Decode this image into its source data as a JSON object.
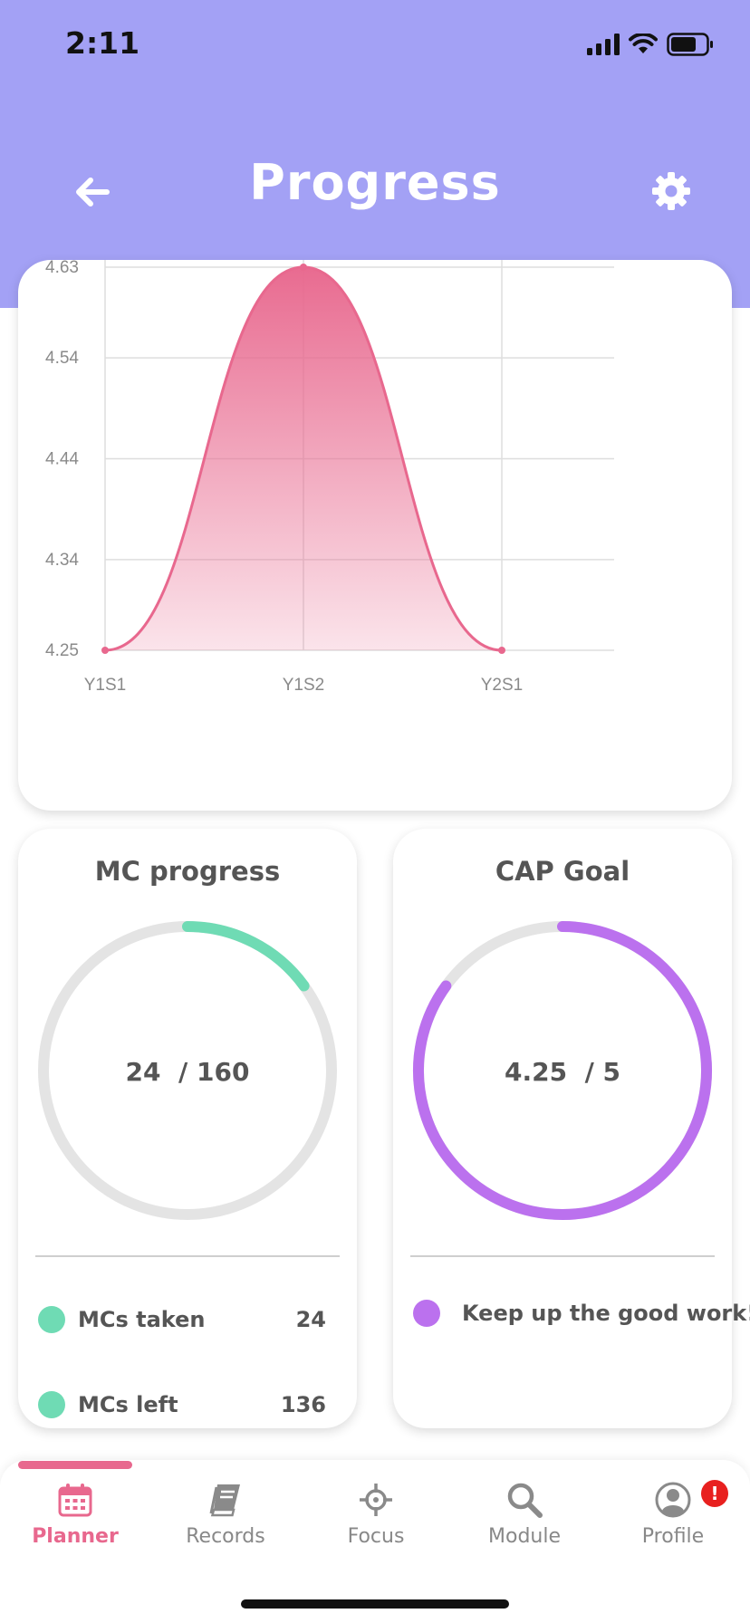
{
  "status": {
    "time": "2:11"
  },
  "header": {
    "title": "Progress",
    "back_icon": "arrow-left-icon",
    "settings_icon": "gear-icon"
  },
  "colors": {
    "header_bg": "#a3a1f5",
    "chart_line": "#e8688e",
    "mc_ring": "#6fdbb4",
    "cap_ring": "#bb71ee",
    "accent": "#e8688e",
    "badge": "#e8201f"
  },
  "chart_data": {
    "type": "area",
    "categories": [
      "Y1S1",
      "Y1S2",
      "Y2S1"
    ],
    "values": [
      4.25,
      4.63,
      4.25
    ],
    "y_ticks": [
      "4.25",
      "4.34",
      "4.44",
      "4.54",
      "4.63"
    ],
    "ylim": [
      4.25,
      4.63
    ],
    "grid": true,
    "smooth": true
  },
  "mc_progress": {
    "title": "MC progress",
    "taken": 24,
    "total": 160,
    "display_value": "24",
    "display_total": "/ 160",
    "legend": [
      {
        "label": "MCs taken",
        "value": "24"
      },
      {
        "label": "MCs left",
        "value": "136"
      }
    ]
  },
  "cap_goal": {
    "title": "CAP Goal",
    "current": 4.25,
    "goal": 5,
    "display_value": "4.25",
    "display_total": "/ 5",
    "message": "Keep up the good work!"
  },
  "tabs": [
    {
      "label": "Planner",
      "icon": "calendar-icon",
      "active": true
    },
    {
      "label": "Records",
      "icon": "book-icon",
      "active": false
    },
    {
      "label": "Focus",
      "icon": "crosshair-icon",
      "active": false
    },
    {
      "label": "Module",
      "icon": "search-icon",
      "active": false
    },
    {
      "label": "Profile",
      "icon": "user-icon",
      "active": false,
      "badge": "!"
    }
  ]
}
